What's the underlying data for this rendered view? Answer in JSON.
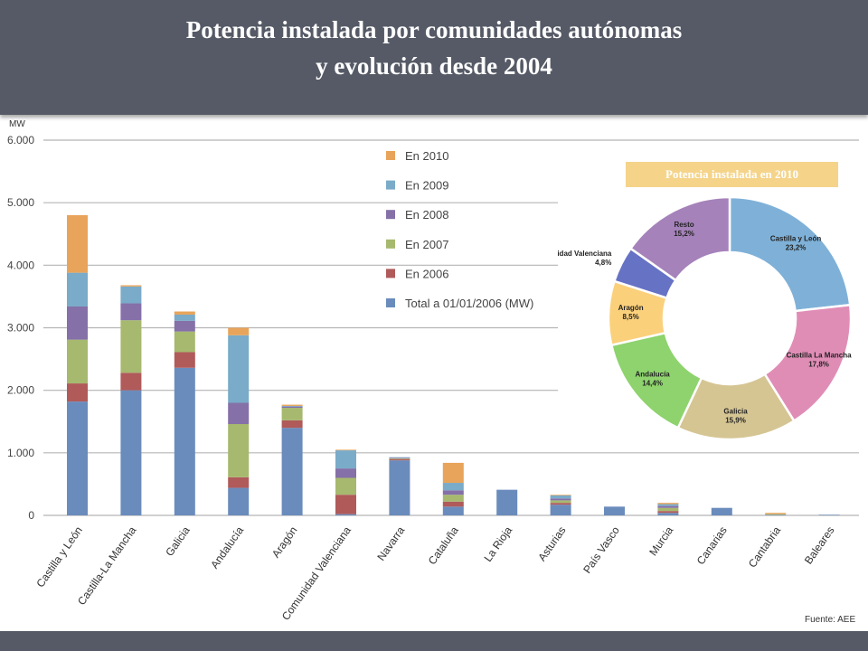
{
  "page": {
    "title_line1": "Potencia instalada por comunidades autónomas",
    "title_line2": "y evolución desde 2004",
    "source": "Fuente: AEE",
    "colors": {
      "header": "#555a66",
      "background": "#ffffff"
    }
  },
  "chart_data": [
    {
      "type": "bar",
      "stacked": true,
      "ylabel": "MW",
      "ylim": [
        0,
        6000
      ],
      "yticks": [
        {
          "value": 0,
          "label": "0"
        },
        {
          "value": 1000,
          "label": "1.000"
        },
        {
          "value": 2000,
          "label": "2.000"
        },
        {
          "value": 3000,
          "label": "3.000"
        },
        {
          "value": 4000,
          "label": "4.000"
        },
        {
          "value": 5000,
          "label": "5.000"
        },
        {
          "value": 6000,
          "label": "6.000"
        }
      ],
      "grid": true,
      "legend_position": "top-center",
      "categories": [
        "Castilla y León",
        "Castilla-La Mancha",
        "Galicia",
        "Andalucía",
        "Aragón",
        "Comunidad Valenciana",
        "Navarra",
        "Cataluña",
        "La Rioja",
        "Asturias",
        "País Vasco",
        "Murcia",
        "Canarias",
        "Cantabria",
        "Baleares"
      ],
      "series": [
        {
          "name": "Total a 01/01/2006 (MW)",
          "color": "#6a8cbc",
          "values": [
            1820,
            2000,
            2360,
            440,
            1400,
            20,
            880,
            140,
            410,
            170,
            140,
            40,
            120,
            10,
            10
          ]
        },
        {
          "name": "En 2006",
          "color": "#b05a5a",
          "values": [
            290,
            280,
            250,
            170,
            120,
            310,
            20,
            80,
            0,
            30,
            0,
            30,
            0,
            0,
            0
          ]
        },
        {
          "name": "En 2007",
          "color": "#a6b96e",
          "values": [
            700,
            840,
            330,
            850,
            200,
            270,
            10,
            110,
            0,
            40,
            0,
            50,
            0,
            10,
            0
          ]
        },
        {
          "name": "En 2008",
          "color": "#8570a8",
          "values": [
            530,
            270,
            170,
            340,
            20,
            150,
            10,
            70,
            0,
            30,
            0,
            30,
            0,
            0,
            0
          ]
        },
        {
          "name": "En 2009",
          "color": "#7aabc8",
          "values": [
            540,
            270,
            100,
            1080,
            10,
            290,
            10,
            120,
            0,
            50,
            0,
            30,
            0,
            0,
            0
          ]
        },
        {
          "name": "En 2010",
          "color": "#e8a45a",
          "values": [
            920,
            20,
            50,
            120,
            20,
            10,
            0,
            320,
            0,
            10,
            0,
            20,
            0,
            20,
            0
          ]
        }
      ]
    },
    {
      "type": "pie",
      "donut": true,
      "title": "Potencia instalada en 2010",
      "slices": [
        {
          "name": "Castilla y León",
          "label": "23,2%",
          "value": 23.2,
          "color": "#7fb1d8"
        },
        {
          "name": "Castilla La Mancha",
          "label": "17,8%",
          "value": 17.8,
          "color": "#e08db6"
        },
        {
          "name": "Galicia",
          "label": "15,9%",
          "value": 15.9,
          "color": "#d5c593"
        },
        {
          "name": "Andalucía",
          "label": "14,4%",
          "value": 14.4,
          "color": "#8ed36d"
        },
        {
          "name": "Aragón",
          "label": "8,5%",
          "value": 8.5,
          "color": "#fbd07b"
        },
        {
          "name": "Comunidad Valenciana",
          "label": "4,8%",
          "value": 4.8,
          "color": "#6672c4"
        },
        {
          "name": "Resto",
          "label": "15,2%",
          "value": 15.2,
          "color": "#a582ba"
        }
      ]
    }
  ]
}
